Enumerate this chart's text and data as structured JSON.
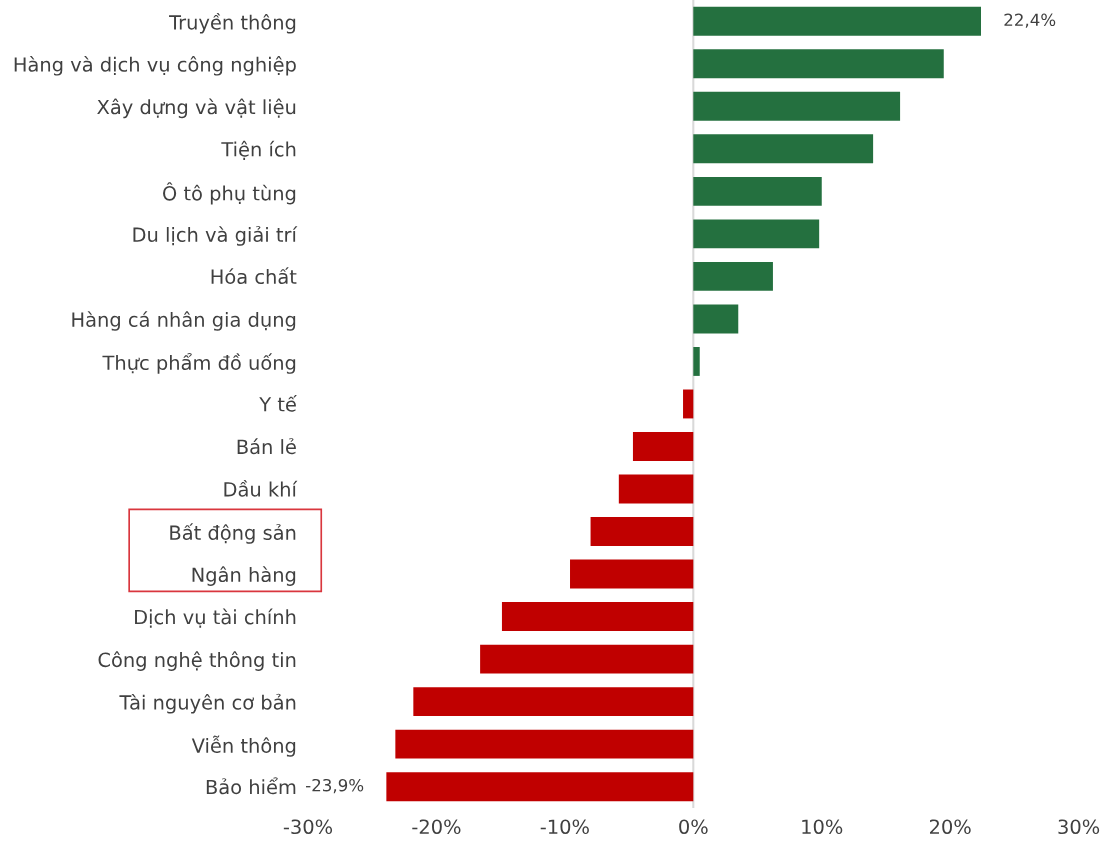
{
  "chart_data": {
    "type": "bar",
    "orientation": "horizontal",
    "categories": [
      "Truyền thông",
      "Hàng và dịch vụ công nghiệp",
      "Xây dựng và vật liệu",
      "Tiện ích",
      "Ô tô phụ tùng",
      "Du lịch và giải trí",
      "Hóa chất",
      "Hàng cá nhân gia dụng",
      "Thực phẩm đồ uống",
      "Y tế",
      "Bán lẻ",
      "Dầu khí",
      "Bất động sản",
      "Ngân hàng",
      "Dịch vụ tài chính",
      "Công nghệ thông tin",
      "Tài nguyên cơ bản",
      "Viễn thông",
      "Bảo hiểm"
    ],
    "values": [
      22.4,
      19.5,
      16.1,
      14.0,
      10.0,
      9.8,
      6.2,
      3.5,
      0.5,
      -0.8,
      -4.7,
      -5.8,
      -8.0,
      -9.6,
      -14.9,
      -16.6,
      -21.8,
      -23.2,
      -23.9
    ],
    "colors": [
      "#24703f",
      "#24703f",
      "#24703f",
      "#24703f",
      "#24703f",
      "#24703f",
      "#24703f",
      "#24703f",
      "#24703f",
      "#c00000",
      "#c00000",
      "#c00000",
      "#c00000",
      "#c00000",
      "#c00000",
      "#c00000",
      "#c00000",
      "#c00000",
      "#c00000"
    ],
    "value_labels": [
      "22,4%",
      null,
      null,
      null,
      null,
      null,
      null,
      null,
      null,
      null,
      null,
      null,
      null,
      null,
      null,
      null,
      null,
      null,
      "-23,9%"
    ],
    "xlim": [
      -30,
      30
    ],
    "xticks": [
      {
        "value": -30,
        "label": "-30%"
      },
      {
        "value": -20,
        "label": "-20%"
      },
      {
        "value": -10,
        "label": "-10%"
      },
      {
        "value": 0,
        "label": "0%"
      },
      {
        "value": 10,
        "label": "10%"
      },
      {
        "value": 20,
        "label": "20%"
      },
      {
        "value": 30,
        "label": "30%"
      }
    ],
    "ref_lines": [
      {
        "axis": "x",
        "value": 0,
        "color": "#d9d9d9"
      }
    ],
    "grid": false,
    "legend": false
  }
}
